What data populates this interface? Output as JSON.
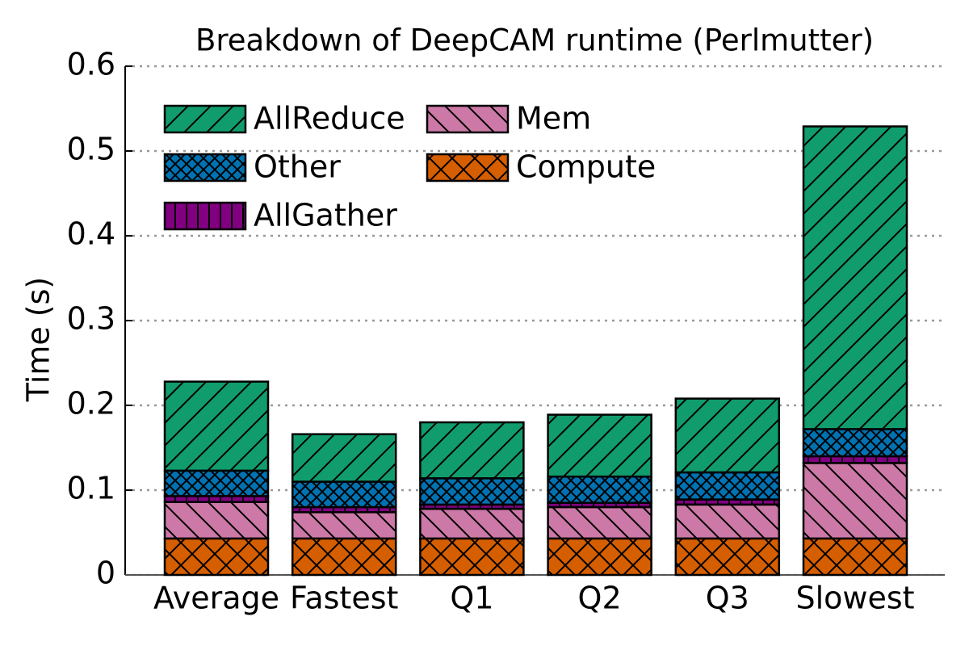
{
  "chart_data": {
    "type": "stacked_bar",
    "title": "Breakdown of DeepCAM runtime (Perlmutter)",
    "y_label": "Time (s)",
    "categories": [
      "Average",
      "Fastest",
      "Q1",
      "Q2",
      "Q3",
      "Slowest"
    ],
    "series": [
      {
        "name": "Compute",
        "color": "#d55e00",
        "hatch": "x",
        "values": [
          0.043,
          0.043,
          0.043,
          0.043,
          0.043,
          0.043
        ]
      },
      {
        "name": "Mem",
        "color": "#cc79a7",
        "hatch": "\\",
        "values": [
          0.043,
          0.031,
          0.035,
          0.037,
          0.04,
          0.089
        ]
      },
      {
        "name": "AllGather",
        "color": "#800080",
        "hatch": "|",
        "values": [
          0.007,
          0.006,
          0.005,
          0.005,
          0.006,
          0.008
        ]
      },
      {
        "name": "Other",
        "color": "#0072b2",
        "hatch": "xx",
        "values": [
          0.03,
          0.03,
          0.031,
          0.031,
          0.032,
          0.032
        ]
      },
      {
        "name": "AllReduce",
        "color": "#119c6d",
        "hatch": "/",
        "values": [
          0.105,
          0.056,
          0.066,
          0.073,
          0.087,
          0.357
        ]
      }
    ],
    "ylim": [
      0,
      0.6
    ],
    "yticks": [
      0,
      0.1,
      0.2,
      0.3,
      0.4,
      0.5,
      0.6
    ],
    "grid": true,
    "legend": "upper left"
  }
}
